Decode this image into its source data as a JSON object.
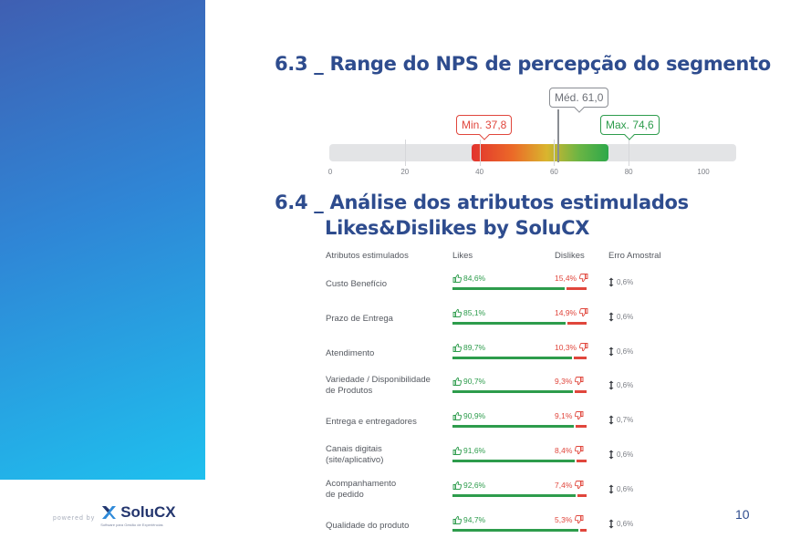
{
  "sections": {
    "nps_range": {
      "title": "6.3 _ Range do NPS de percepção do segmento"
    },
    "attributes": {
      "title_line1": "6.4 _ Análise dos atributos estimulados",
      "title_line2": "Likes&Dislikes by SoluCX"
    }
  },
  "chart_data": {
    "type": "bar",
    "min": 37.8,
    "max": 74.6,
    "median": 61.0,
    "axis_range": [
      0,
      100
    ],
    "ticks": [
      0,
      20,
      40,
      60,
      80,
      100
    ],
    "labels": {
      "min": "Min. 37,8",
      "max": "Max. 74,6",
      "median": "Méd. 61,0"
    }
  },
  "table": {
    "headers": {
      "attribute": "Atributos estimulados",
      "likes": "Likes",
      "dislikes": "Dislikes",
      "error": "Erro Amostral"
    },
    "rows": [
      {
        "label": "Custo Benefício",
        "likes": 84.6,
        "likes_text": "84,6%",
        "dislikes_text": "15,4%",
        "error_text": "0,6%"
      },
      {
        "label": "Prazo de Entrega",
        "likes": 85.1,
        "likes_text": "85,1%",
        "dislikes_text": "14,9%",
        "error_text": "0,6%"
      },
      {
        "label": "Atendimento",
        "likes": 89.7,
        "likes_text": "89,7%",
        "dislikes_text": "10,3%",
        "error_text": "0,6%"
      },
      {
        "label": "Variedade / Disponibilidade\nde Produtos",
        "likes": 90.7,
        "likes_text": "90,7%",
        "dislikes_text": "9,3%",
        "error_text": "0,6%"
      },
      {
        "label": "Entrega e entregadores",
        "likes": 90.9,
        "likes_text": "90,9%",
        "dislikes_text": "9,1%",
        "error_text": "0,7%"
      },
      {
        "label": "Canais digitais\n(site/aplicativo)",
        "likes": 91.6,
        "likes_text": "91,6%",
        "dislikes_text": "8,4%",
        "error_text": "0,6%"
      },
      {
        "label": "Acompanhamento\nde pedido",
        "likes": 92.6,
        "likes_text": "92,6%",
        "dislikes_text": "7,4%",
        "error_text": "0,6%"
      },
      {
        "label": "Qualidade do produto",
        "likes": 94.7,
        "likes_text": "94,7%",
        "dislikes_text": "5,3%",
        "error_text": "0,6%"
      }
    ]
  },
  "footer": {
    "powered_by": "powered by",
    "brand": "SoluCX",
    "tagline": "Software para Gestão de Experiências",
    "page_number": "10"
  },
  "colors": {
    "like": "#2d9c4c",
    "dislike": "#e0463c",
    "title": "#2e4c8e"
  },
  "icons": {
    "like": "thumbs-up-icon",
    "dislike": "thumbs-down-icon",
    "error": "up-down-arrow-icon"
  }
}
